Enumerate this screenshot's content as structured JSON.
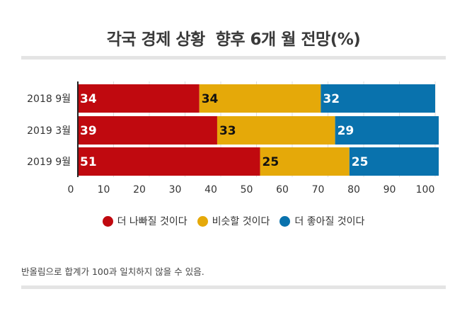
{
  "title": "각국 경제 상황  향후 6개 월 전망(%)",
  "footnote": "반올림으로 합계가 100과 일치하지 않을 수 있음.",
  "chart_data": {
    "type": "bar",
    "orientation": "horizontal",
    "stacked": true,
    "title": "각국 경제 상황  향후 6개 월 전망(%)",
    "categories": [
      "2018 9월",
      "2019 3월",
      "2019 9월"
    ],
    "series": [
      {
        "name": "더 나빠질 것이다",
        "color": "#c0090f",
        "values": [
          34,
          39,
          51
        ]
      },
      {
        "name": "비슷할 것이다",
        "color": "#e5a909",
        "values": [
          34,
          33,
          25
        ]
      },
      {
        "name": "더 좋아질 것이다",
        "color": "#0972ad",
        "values": [
          32,
          29,
          25
        ]
      }
    ],
    "xlim": [
      0,
      100
    ],
    "xticks": [
      "0",
      "10",
      "20",
      "30",
      "40",
      "50",
      "60",
      "70",
      "80",
      "90",
      "100"
    ],
    "grid": true,
    "legend_position": "bottom"
  }
}
